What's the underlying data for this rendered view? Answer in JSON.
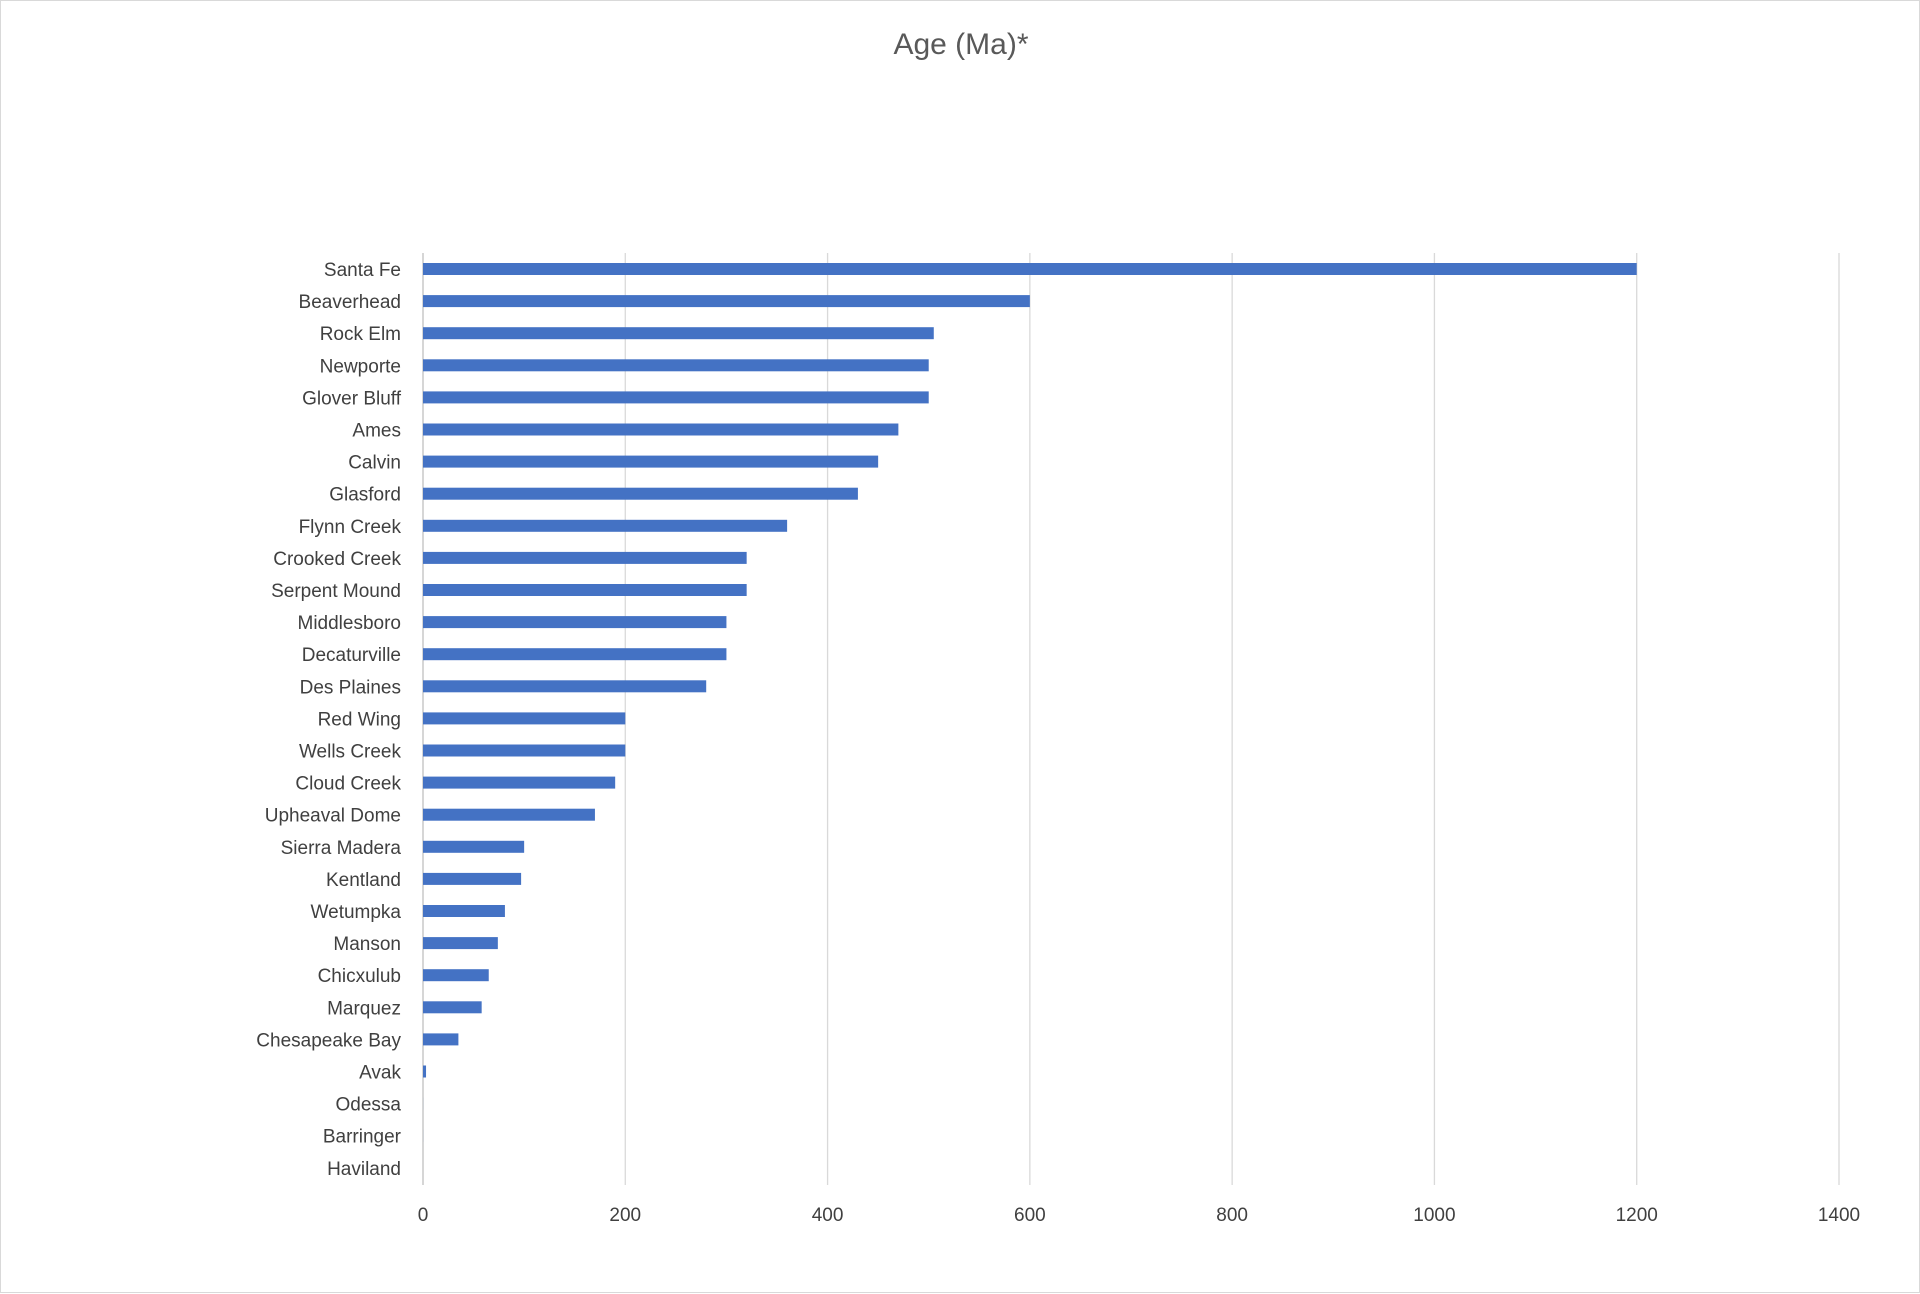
{
  "chart_data": {
    "type": "bar",
    "orientation": "horizontal",
    "title": "Age (Ma)*",
    "xlabel": "",
    "ylabel": "",
    "xlim": [
      0,
      1400
    ],
    "x_ticks": [
      0,
      200,
      400,
      600,
      800,
      1000,
      1200,
      1400
    ],
    "grid": true,
    "legend": "none",
    "bar_color": "#4472c4",
    "categories": [
      "Santa Fe",
      "Beaverhead",
      "Rock Elm",
      "Newporte",
      "Glover Bluff",
      "Ames",
      "Calvin",
      "Glasford",
      "Flynn Creek",
      "Crooked Creek",
      "Serpent Mound",
      "Middlesboro",
      "Decaturville",
      "Des Plaines",
      "Red Wing",
      "Wells Creek",
      "Cloud Creek",
      "Upheaval Dome",
      "Sierra Madera",
      "Kentland",
      "Wetumpka",
      "Manson",
      "Chicxulub",
      "Marquez",
      "Chesapeake Bay",
      "Avak",
      "Odessa",
      "Barringer",
      "Haviland"
    ],
    "values": [
      1200,
      600,
      505,
      500,
      500,
      470,
      450,
      430,
      360,
      320,
      320,
      300,
      300,
      280,
      200,
      200,
      190,
      170,
      100,
      97,
      81,
      74,
      65,
      58,
      35,
      3,
      0.05,
      0.05,
      0.001
    ]
  }
}
